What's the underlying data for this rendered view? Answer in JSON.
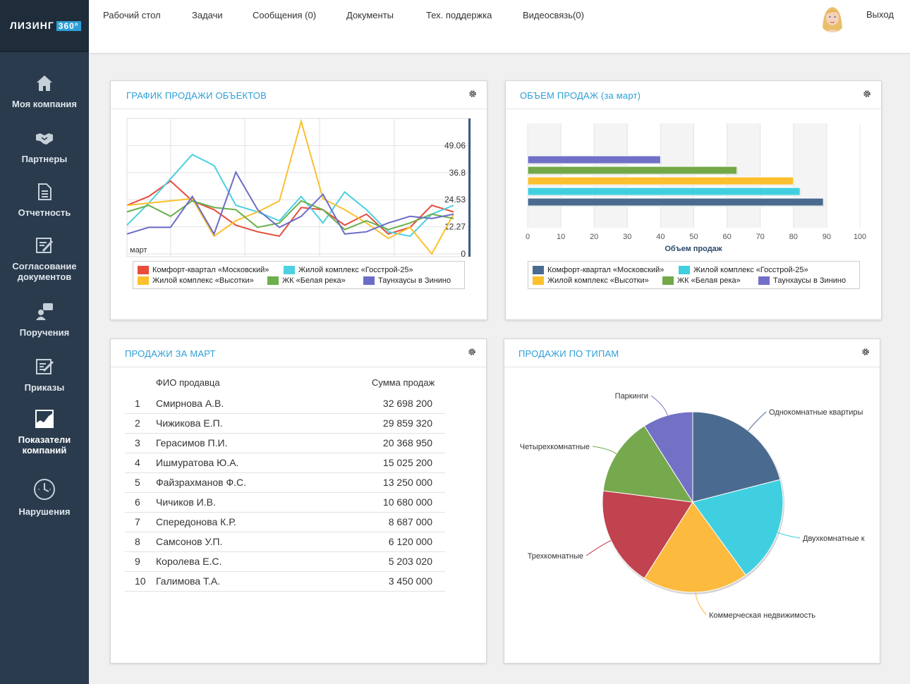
{
  "app": {
    "logo_text": "ЛИЗИНГ",
    "logo_badge": "360°"
  },
  "sidebar": {
    "items": [
      {
        "label": "Моя компания",
        "icon": "home-icon"
      },
      {
        "label": "Партнеры",
        "icon": "handshake-icon"
      },
      {
        "label": "Отчетность",
        "icon": "document-icon"
      },
      {
        "label": "Согласование документов",
        "icon": "sign-document-icon"
      },
      {
        "label": "Поручения",
        "icon": "user-chat-icon"
      },
      {
        "label": "Приказы",
        "icon": "order-icon"
      },
      {
        "label": "Показатели компаний",
        "icon": "chart-icon",
        "active": true
      },
      {
        "label": "Нарушения",
        "icon": "clock-icon"
      }
    ]
  },
  "topnav": {
    "items": [
      "Рабочий стол",
      "Задачи",
      "Сообщения (0)",
      "Документы",
      "Тех. поддержка",
      "Видеосвязь(0)"
    ],
    "exit": "Выход"
  },
  "panels": {
    "line_title": "ГРАФИК ПРОДАЖИ ОБЪЕКТОВ",
    "bar_title": "ОБЪЕМ ПРОДАЖ (за март)",
    "table_title": "ПРОДАЖИ ЗА МАРТ",
    "pie_title": "ПРОДАЖИ ПО ТИПАМ"
  },
  "colors": {
    "accent": "#2e9fd6",
    "sidebar": "#2a3b4d"
  },
  "legend": [
    {
      "name": "Комфорт-квартал «Московский»"
    },
    {
      "name": "Жилой комплекс «Госстрой-25»"
    },
    {
      "name": "Жилой комплекс «Высотки»"
    },
    {
      "name": "ЖК «Белая река»"
    },
    {
      "name": "Таунхаусы в Зинино"
    }
  ],
  "table": {
    "headers": {
      "name": "ФИО продавца",
      "sum": "Сумма продаж"
    },
    "rows": [
      {
        "n": "1",
        "name": "Смирнова А.В.",
        "sum": "32 698 200"
      },
      {
        "n": "2",
        "name": "Чижикова Е.П.",
        "sum": "29 859 320"
      },
      {
        "n": "3",
        "name": "Герасимов П.И.",
        "sum": "20 368 950"
      },
      {
        "n": "4",
        "name": "Ишмуратова Ю.А.",
        "sum": "15 025 200"
      },
      {
        "n": "5",
        "name": "Файзрахманов Ф.С.",
        "sum": "13 250 000"
      },
      {
        "n": "6",
        "name": "Чичиков И.В.",
        "sum": "10 680 000"
      },
      {
        "n": "7",
        "name": "Спередонова К.Р.",
        "sum": "8 687 000"
      },
      {
        "n": "8",
        "name": "Самсонов У.П.",
        "sum": "6 120 000"
      },
      {
        "n": "9",
        "name": "Королева Е.С.",
        "sum": "5 203 020"
      },
      {
        "n": "10",
        "name": "Галимова Т.А.",
        "sum": "3 450 000"
      }
    ]
  },
  "chart_data": [
    {
      "type": "line",
      "title": "ГРАФИК ПРОДАЖИ ОБЪЕКТОВ",
      "xlabel": "март",
      "ylim": [
        0,
        61.33
      ],
      "yticks": [
        "0",
        "12.27",
        "24.53",
        "36.8",
        "49.06"
      ],
      "grid": true,
      "legend_position": "bottom",
      "series": [
        {
          "name": "Комфорт-квартал «Московский»",
          "color": "#e74c3c",
          "values": [
            22,
            26,
            33,
            24,
            20,
            13,
            10,
            8,
            21,
            20,
            13,
            18,
            9,
            12,
            22,
            19
          ]
        },
        {
          "name": "Жилой комплекс «Госстрой-25»",
          "color": "#4dd0e1",
          "values": [
            13,
            23,
            34,
            45,
            40,
            22,
            19,
            15,
            26,
            14,
            28,
            20,
            10,
            8,
            18,
            22
          ]
        },
        {
          "name": "Жилой комплекс «Высотки»",
          "color": "#fbc02d",
          "values": [
            22,
            23,
            24,
            25,
            8,
            15,
            19,
            24,
            60,
            25,
            20,
            14,
            7,
            12,
            0,
            18
          ]
        },
        {
          "name": "ЖК «Белая река»",
          "color": "#6ab04c",
          "values": [
            19,
            22,
            17,
            24,
            21,
            20,
            12,
            14,
            24,
            20,
            11,
            15,
            11,
            14,
            18,
            16
          ]
        },
        {
          "name": "Таунхаусы в Зинино",
          "color": "#6c6cc8",
          "values": [
            9,
            12,
            12,
            26,
            9,
            37,
            20,
            12,
            17,
            27,
            9,
            10,
            14,
            17,
            16,
            18
          ]
        }
      ]
    },
    {
      "type": "bar",
      "orientation": "horizontal",
      "xlabel": "Объем продаж",
      "xlim": [
        0,
        100
      ],
      "xticks": [
        "0",
        "10",
        "20",
        "30",
        "40",
        "50",
        "60",
        "70",
        "80",
        "90",
        "100"
      ],
      "legend_position": "bottom",
      "series": [
        {
          "name": "Таунхаусы в Зинино",
          "color": "#7070c8",
          "value": 40
        },
        {
          "name": "ЖК «Белая река»",
          "color": "#72a848",
          "value": 63
        },
        {
          "name": "Жилой комплекс «Высотки»",
          "color": "#fbc02d",
          "value": 80
        },
        {
          "name": "Жилой комплекс «Госстрой-25»",
          "color": "#40cfe0",
          "value": 82
        },
        {
          "name": "Комфорт-квартал «Московский»",
          "color": "#4a6b8f",
          "value": 89
        }
      ],
      "legend_order": [
        {
          "name": "Комфорт-квартал «Московский»",
          "color": "#4a6b8f"
        },
        {
          "name": "Жилой комплекс «Госстрой-25»",
          "color": "#40cfe0"
        },
        {
          "name": "Жилой комплекс «Высотки»",
          "color": "#fbc02d"
        },
        {
          "name": "ЖК «Белая река»",
          "color": "#72a848"
        },
        {
          "name": "Таунхаусы в Зинино",
          "color": "#7070c8"
        }
      ]
    },
    {
      "type": "pie",
      "title": "ПРОДАЖИ ПО ТИПАМ",
      "slices": [
        {
          "label": "Однокомнатные квартиры",
          "value": 21,
          "color": "#4a6b8f"
        },
        {
          "label": "Двухкомнатные к",
          "value": 19,
          "color": "#40cfe0"
        },
        {
          "label": "Коммерческая недвижимость",
          "value": 19,
          "color": "#fcba3f"
        },
        {
          "label": "Трехкомнатные",
          "value": 18,
          "color": "#c0434f"
        },
        {
          "label": "Четырехкомнатные",
          "value": 14,
          "color": "#76a84e"
        },
        {
          "label": "Паркинги",
          "value": 9,
          "color": "#7271c6"
        }
      ]
    }
  ]
}
